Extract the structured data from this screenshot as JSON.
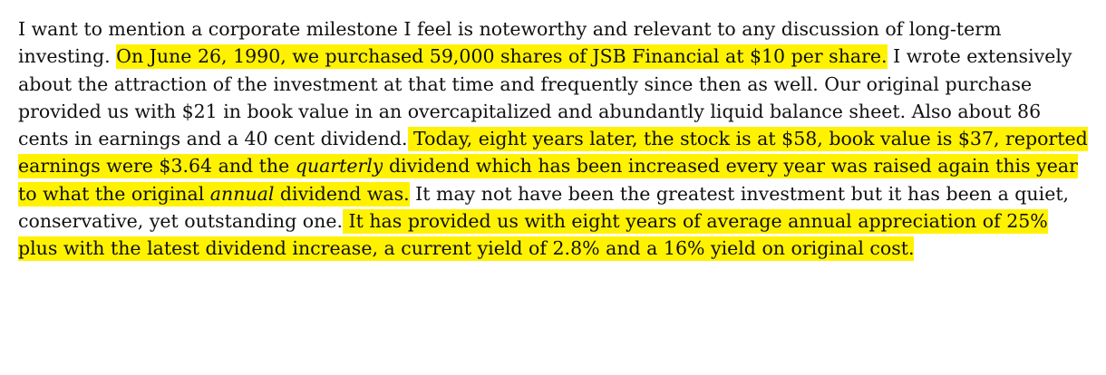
{
  "document": {
    "segments": [
      {
        "text": "I want to mention a corporate milestone I feel is noteworthy and relevant to any discussion of long-term investing. ",
        "highlight": false
      },
      {
        "text": "On June 26, 1990, we purchased 59,000 shares of JSB Financial at $10 per share.",
        "highlight": true
      },
      {
        "text": " I wrote extensively about the attraction of the investment at that time and frequently since then as well. Our original purchase provided us with $21 in book value in an overcapitalized and abundantly liquid balance sheet. Also about 86 cents in earnings and a 40 cent dividend.",
        "highlight": false
      },
      {
        "text": " Today, eight years later, the stock is at $58, book value is $37, reported earnings were $3.64 and the ",
        "highlight": true
      },
      {
        "text": "quarterly",
        "highlight": true,
        "italic": true
      },
      {
        "text": " dividend which has been increased every year was raised again this year to what the original ",
        "highlight": true
      },
      {
        "text": "annual",
        "highlight": true,
        "italic": true
      },
      {
        "text": " dividend was.",
        "highlight": true
      },
      {
        "text": " It may not have been the greatest investment but it has been a quiet, conservative, yet outstanding one.",
        "highlight": false
      },
      {
        "text": " It has provided us with eight years of average annual appreciation of 25% plus with the latest dividend increase, a current yield of 2.8% and a 16% yield on original cost.",
        "highlight": true
      }
    ],
    "highlight_color": "#fff200",
    "text_color": "#111111"
  }
}
